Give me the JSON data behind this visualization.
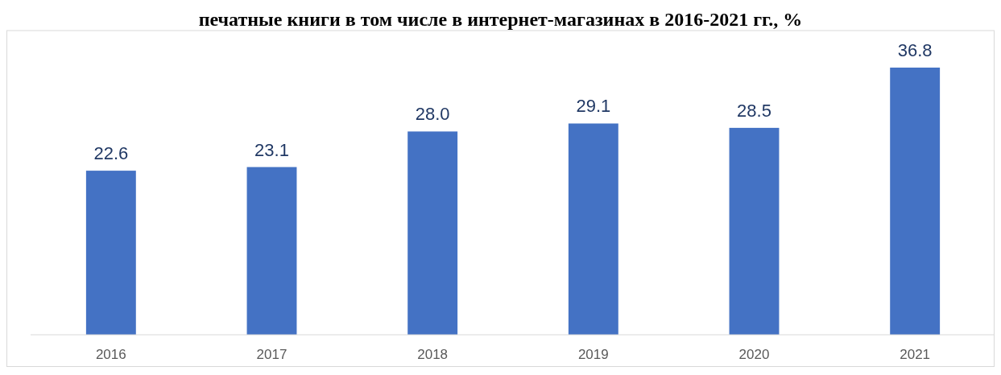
{
  "chart_data": {
    "type": "bar",
    "title": "печатные книги в том числе в интернет-магазинах в 2016-2021 гг., %",
    "categories": [
      "2016",
      "2017",
      "2018",
      "2019",
      "2020",
      "2021"
    ],
    "values": [
      22.6,
      23.1,
      28.0,
      29.1,
      28.5,
      36.8
    ],
    "value_labels": [
      "22.6",
      "23.1",
      "28.0",
      "29.1",
      "28.5",
      "36.8"
    ],
    "color": "#4472c4"
  }
}
